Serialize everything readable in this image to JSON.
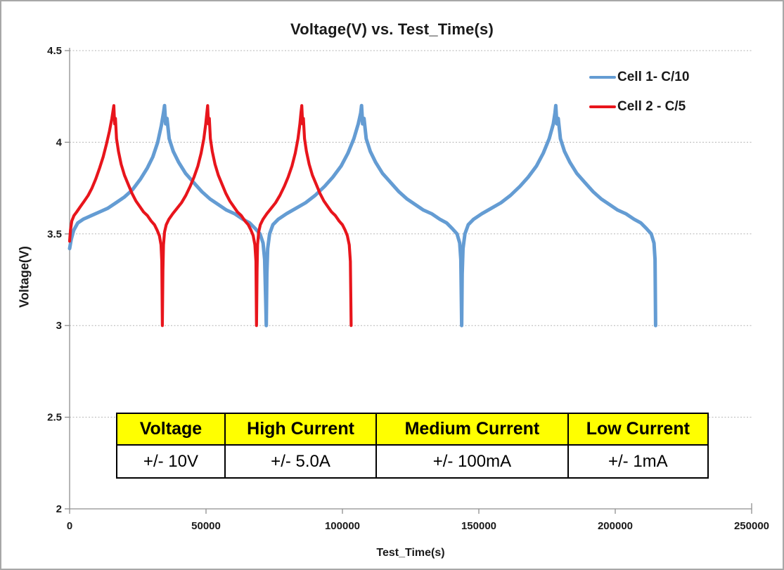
{
  "chart_data": {
    "type": "line",
    "title": "Voltage(V) vs. Test_Time(s)",
    "xlabel": "Test_Time(s)",
    "ylabel": "Voltage(V)",
    "xlim": [
      0,
      250000
    ],
    "ylim": [
      2,
      4.5
    ],
    "grid": "horizontal dashed gridlines at 2.5, 3, 3.5, 4, 4.5",
    "legend_position": "top-right inside plot",
    "x_ticks": {
      "values": [
        0,
        50000,
        100000,
        150000,
        200000,
        250000
      ],
      "labels": [
        "0",
        "50000",
        "100000",
        "150000",
        "200000",
        "250000"
      ]
    },
    "y_ticks": {
      "values": [
        4.5,
        4,
        3.5,
        3,
        2.5,
        2
      ],
      "labels": [
        "4.5",
        "4",
        "3.5",
        "3",
        "2.5",
        "2"
      ]
    },
    "series": [
      {
        "id": "cell-1",
        "name": "Cell 1- C/10",
        "color": "#649CD3",
        "description": "3 charge/discharge cycles, ~36000 s per half-cycle, charge to 4.2 V, discharge cutoff 3.0 V",
        "points": [
          [
            0,
            3.42
          ],
          [
            600,
            3.47
          ],
          [
            1500,
            3.52
          ],
          [
            3000,
            3.56
          ],
          [
            5000,
            3.58
          ],
          [
            8000,
            3.6
          ],
          [
            11000,
            3.62
          ],
          [
            14000,
            3.64
          ],
          [
            17000,
            3.67
          ],
          [
            20000,
            3.7
          ],
          [
            23000,
            3.74
          ],
          [
            26000,
            3.8
          ],
          [
            28500,
            3.86
          ],
          [
            30500,
            3.92
          ],
          [
            32300,
            4.0
          ],
          [
            33600,
            4.09
          ],
          [
            34400,
            4.16
          ],
          [
            34800,
            4.2
          ],
          [
            35200,
            4.1
          ],
          [
            35700,
            4.13
          ],
          [
            36500,
            4.02
          ],
          [
            38000,
            3.95
          ],
          [
            40000,
            3.89
          ],
          [
            42500,
            3.83
          ],
          [
            45500,
            3.78
          ],
          [
            48500,
            3.73
          ],
          [
            51500,
            3.69
          ],
          [
            54500,
            3.66
          ],
          [
            57500,
            3.63
          ],
          [
            60500,
            3.61
          ],
          [
            63500,
            3.58
          ],
          [
            66000,
            3.56
          ],
          [
            68000,
            3.53
          ],
          [
            69800,
            3.5
          ],
          [
            70900,
            3.45
          ],
          [
            71500,
            3.36
          ],
          [
            71900,
            3.12
          ],
          [
            72100,
            3.0
          ],
          [
            72300,
            3.28
          ],
          [
            72600,
            3.42
          ],
          [
            73300,
            3.5
          ],
          [
            74500,
            3.55
          ],
          [
            76500,
            3.58
          ],
          [
            79500,
            3.61
          ],
          [
            83000,
            3.64
          ],
          [
            86500,
            3.67
          ],
          [
            90000,
            3.71
          ],
          [
            93500,
            3.76
          ],
          [
            96500,
            3.81
          ],
          [
            99500,
            3.87
          ],
          [
            102000,
            3.94
          ],
          [
            104200,
            4.02
          ],
          [
            105800,
            4.1
          ],
          [
            106700,
            4.16
          ],
          [
            107000,
            4.2
          ],
          [
            107400,
            4.1
          ],
          [
            107900,
            4.13
          ],
          [
            108700,
            4.02
          ],
          [
            110200,
            3.95
          ],
          [
            112200,
            3.89
          ],
          [
            114700,
            3.83
          ],
          [
            117700,
            3.78
          ],
          [
            120700,
            3.73
          ],
          [
            123700,
            3.69
          ],
          [
            126700,
            3.66
          ],
          [
            129700,
            3.63
          ],
          [
            132700,
            3.61
          ],
          [
            135700,
            3.58
          ],
          [
            138200,
            3.56
          ],
          [
            140200,
            3.53
          ],
          [
            142000,
            3.5
          ],
          [
            143000,
            3.45
          ],
          [
            143400,
            3.36
          ],
          [
            143600,
            3.12
          ],
          [
            143700,
            3.0
          ],
          [
            143900,
            3.28
          ],
          [
            144200,
            3.42
          ],
          [
            144900,
            3.5
          ],
          [
            146100,
            3.55
          ],
          [
            148100,
            3.58
          ],
          [
            151100,
            3.61
          ],
          [
            154600,
            3.64
          ],
          [
            158100,
            3.67
          ],
          [
            161600,
            3.71
          ],
          [
            165100,
            3.76
          ],
          [
            168100,
            3.81
          ],
          [
            171100,
            3.87
          ],
          [
            173600,
            3.94
          ],
          [
            175800,
            4.02
          ],
          [
            177300,
            4.1
          ],
          [
            177900,
            4.16
          ],
          [
            178200,
            4.2
          ],
          [
            178600,
            4.1
          ],
          [
            179100,
            4.13
          ],
          [
            179900,
            4.02
          ],
          [
            181400,
            3.95
          ],
          [
            183400,
            3.89
          ],
          [
            185900,
            3.83
          ],
          [
            188900,
            3.78
          ],
          [
            191900,
            3.73
          ],
          [
            194900,
            3.69
          ],
          [
            197900,
            3.66
          ],
          [
            200900,
            3.63
          ],
          [
            203900,
            3.61
          ],
          [
            206900,
            3.58
          ],
          [
            209400,
            3.56
          ],
          [
            211400,
            3.53
          ],
          [
            213200,
            3.5
          ],
          [
            214200,
            3.45
          ],
          [
            214600,
            3.36
          ],
          [
            214800,
            3.0
          ]
        ]
      },
      {
        "id": "cell-2",
        "name": "Cell 2 - C/5",
        "color": "#E8151C",
        "description": "3 charge/discharge cycles, ~17000 s per half-cycle, charge to 4.2 V, discharge cutoff 3.0 V",
        "points": [
          [
            0,
            3.46
          ],
          [
            300,
            3.52
          ],
          [
            800,
            3.57
          ],
          [
            1600,
            3.6
          ],
          [
            2600,
            3.62
          ],
          [
            4000,
            3.65
          ],
          [
            5400,
            3.68
          ],
          [
            6800,
            3.71
          ],
          [
            8200,
            3.75
          ],
          [
            9600,
            3.8
          ],
          [
            11000,
            3.86
          ],
          [
            12300,
            3.92
          ],
          [
            13500,
            3.99
          ],
          [
            14600,
            4.06
          ],
          [
            15500,
            4.13
          ],
          [
            16200,
            4.2
          ],
          [
            16500,
            4.1
          ],
          [
            16800,
            4.13
          ],
          [
            17200,
            4.02
          ],
          [
            17900,
            3.95
          ],
          [
            18900,
            3.88
          ],
          [
            20100,
            3.82
          ],
          [
            21500,
            3.77
          ],
          [
            22900,
            3.72
          ],
          [
            24300,
            3.68
          ],
          [
            25700,
            3.65
          ],
          [
            27100,
            3.62
          ],
          [
            28500,
            3.6
          ],
          [
            29900,
            3.57
          ],
          [
            31100,
            3.55
          ],
          [
            32100,
            3.52
          ],
          [
            32900,
            3.49
          ],
          [
            33500,
            3.44
          ],
          [
            33800,
            3.35
          ],
          [
            34000,
            3.0
          ],
          [
            34200,
            3.3
          ],
          [
            34400,
            3.44
          ],
          [
            34800,
            3.51
          ],
          [
            35400,
            3.55
          ],
          [
            36400,
            3.58
          ],
          [
            37800,
            3.61
          ],
          [
            39400,
            3.64
          ],
          [
            41000,
            3.67
          ],
          [
            42600,
            3.71
          ],
          [
            44200,
            3.76
          ],
          [
            45600,
            3.81
          ],
          [
            47000,
            3.87
          ],
          [
            48200,
            3.94
          ],
          [
            49200,
            4.02
          ],
          [
            49900,
            4.1
          ],
          [
            50300,
            4.16
          ],
          [
            50600,
            4.2
          ],
          [
            50900,
            4.1
          ],
          [
            51200,
            4.13
          ],
          [
            51600,
            4.02
          ],
          [
            52300,
            3.95
          ],
          [
            53300,
            3.88
          ],
          [
            54500,
            3.82
          ],
          [
            55900,
            3.77
          ],
          [
            57300,
            3.72
          ],
          [
            58700,
            3.68
          ],
          [
            60100,
            3.65
          ],
          [
            61500,
            3.62
          ],
          [
            62900,
            3.6
          ],
          [
            64300,
            3.57
          ],
          [
            65500,
            3.55
          ],
          [
            66500,
            3.52
          ],
          [
            67300,
            3.49
          ],
          [
            67900,
            3.44
          ],
          [
            68300,
            3.35
          ],
          [
            68500,
            3.0
          ],
          [
            68700,
            3.3
          ],
          [
            68900,
            3.44
          ],
          [
            69300,
            3.51
          ],
          [
            69900,
            3.55
          ],
          [
            70900,
            3.58
          ],
          [
            72300,
            3.61
          ],
          [
            73900,
            3.64
          ],
          [
            75500,
            3.67
          ],
          [
            77100,
            3.71
          ],
          [
            78700,
            3.76
          ],
          [
            80100,
            3.81
          ],
          [
            81500,
            3.87
          ],
          [
            82700,
            3.94
          ],
          [
            83700,
            4.02
          ],
          [
            84400,
            4.1
          ],
          [
            84800,
            4.16
          ],
          [
            85100,
            4.2
          ],
          [
            85400,
            4.1
          ],
          [
            85700,
            4.13
          ],
          [
            86100,
            4.02
          ],
          [
            86800,
            3.95
          ],
          [
            87800,
            3.88
          ],
          [
            89000,
            3.82
          ],
          [
            90400,
            3.77
          ],
          [
            91800,
            3.72
          ],
          [
            93200,
            3.68
          ],
          [
            94600,
            3.65
          ],
          [
            96000,
            3.62
          ],
          [
            97400,
            3.6
          ],
          [
            98800,
            3.57
          ],
          [
            100000,
            3.55
          ],
          [
            101000,
            3.52
          ],
          [
            101800,
            3.49
          ],
          [
            102500,
            3.44
          ],
          [
            102900,
            3.35
          ],
          [
            103200,
            3.0
          ]
        ]
      }
    ]
  },
  "table": {
    "header_bg": "#FFFF00",
    "headers": [
      "Voltage",
      "High Current",
      "Medium Current",
      "Low Current"
    ],
    "values": [
      "+/- 10V",
      "+/- 5.0A",
      "+/- 100mA",
      "+/- 1mA"
    ]
  }
}
